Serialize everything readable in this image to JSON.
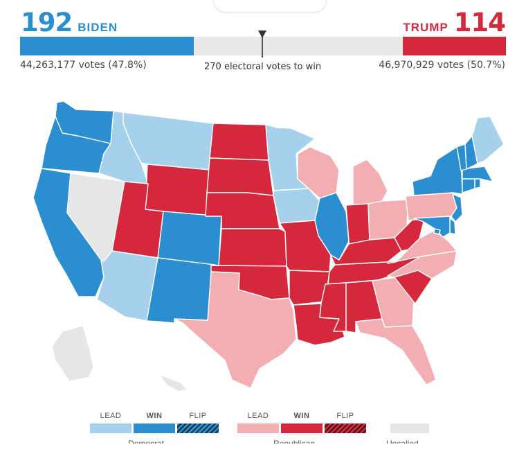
{
  "header": {
    "dem": {
      "ev": "192",
      "name": "BIDEN",
      "votes": "44,263,177 votes (47.8%)",
      "color": "#2a8ed0"
    },
    "rep": {
      "ev": "114",
      "name": "TRUMP",
      "votes": "46,970,929 votes (50.7%)",
      "color": "#d5283c"
    },
    "threshold_text": "270 electoral votes to win",
    "ev_total": 538,
    "threshold": 270
  },
  "colors": {
    "dem_win": "#2a8ed0",
    "dem_lead": "#a6d1ed",
    "rep_win": "#d5283c",
    "rep_lead": "#f3aeb1",
    "uncalled": "#e6e6e6",
    "border": "#ffffff"
  },
  "states": {
    "WA": "dem_win",
    "OR": "dem_win",
    "CA": "dem_win",
    "NV": "uncalled",
    "ID": "dem_lead",
    "MT": "dem_lead",
    "WY": "rep_win",
    "UT": "rep_win",
    "AZ": "dem_lead",
    "CO": "dem_win",
    "NM": "dem_win",
    "ND": "rep_win",
    "SD": "rep_win",
    "NE": "rep_win",
    "KS": "rep_win",
    "OK": "rep_win",
    "TX": "rep_lead",
    "MN": "dem_lead",
    "IA": "dem_lead",
    "MO": "rep_win",
    "AR": "rep_win",
    "LA": "rep_win",
    "WI": "rep_lead",
    "IL": "dem_win",
    "MI": "rep_lead",
    "IN": "rep_win",
    "OH": "rep_lead",
    "KY": "rep_win",
    "TN": "rep_win",
    "MS": "rep_win",
    "AL": "rep_win",
    "GA": "rep_lead",
    "FL": "rep_lead",
    "SC": "rep_win",
    "NC": "rep_lead",
    "VA": "rep_lead",
    "WV": "rep_win",
    "PA": "rep_lead",
    "NY": "dem_win",
    "VT": "dem_win",
    "NH": "dem_win",
    "ME": "dem_lead",
    "MA": "dem_win",
    "CT": "dem_win",
    "RI": "dem_win",
    "NJ": "dem_win",
    "DE": "dem_win",
    "MD": "dem_win",
    "DC": "dem_win",
    "AK": "uncalled",
    "HI": "uncalled"
  },
  "legend": {
    "dem": {
      "lead": "LEAD",
      "win": "WIN",
      "flip": "FLIP",
      "caption": "Democrat"
    },
    "rep": {
      "lead": "LEAD",
      "win": "WIN",
      "flip": "FLIP",
      "caption": "Republican"
    },
    "uncalled": {
      "caption": "Uncalled"
    }
  }
}
